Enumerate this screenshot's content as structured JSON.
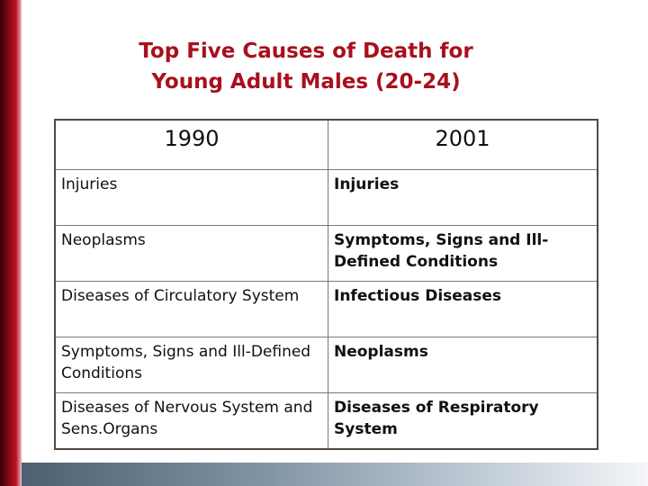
{
  "title": {
    "line1": "Top Five Causes of Death for",
    "line2": "Young Adult Males (20-24)"
  },
  "table": {
    "headers": [
      "1990",
      "2001"
    ],
    "rows": [
      [
        "Injuries",
        "Injuries"
      ],
      [
        "Neoplasms",
        "Symptoms, Signs and Ill-Defined Conditions"
      ],
      [
        "Diseases of Circulatory System",
        "Infectious Diseases"
      ],
      [
        "Symptoms, Signs and Ill-Defined Conditions",
        "Neoplasms"
      ],
      [
        "Diseases of Nervous System and Sens.Organs",
        "Diseases of Respiratory System"
      ]
    ]
  },
  "colors": {
    "title": "#a8101e",
    "left_bar": "#8a0a18",
    "bottom_bar": "#7b8fa1"
  }
}
